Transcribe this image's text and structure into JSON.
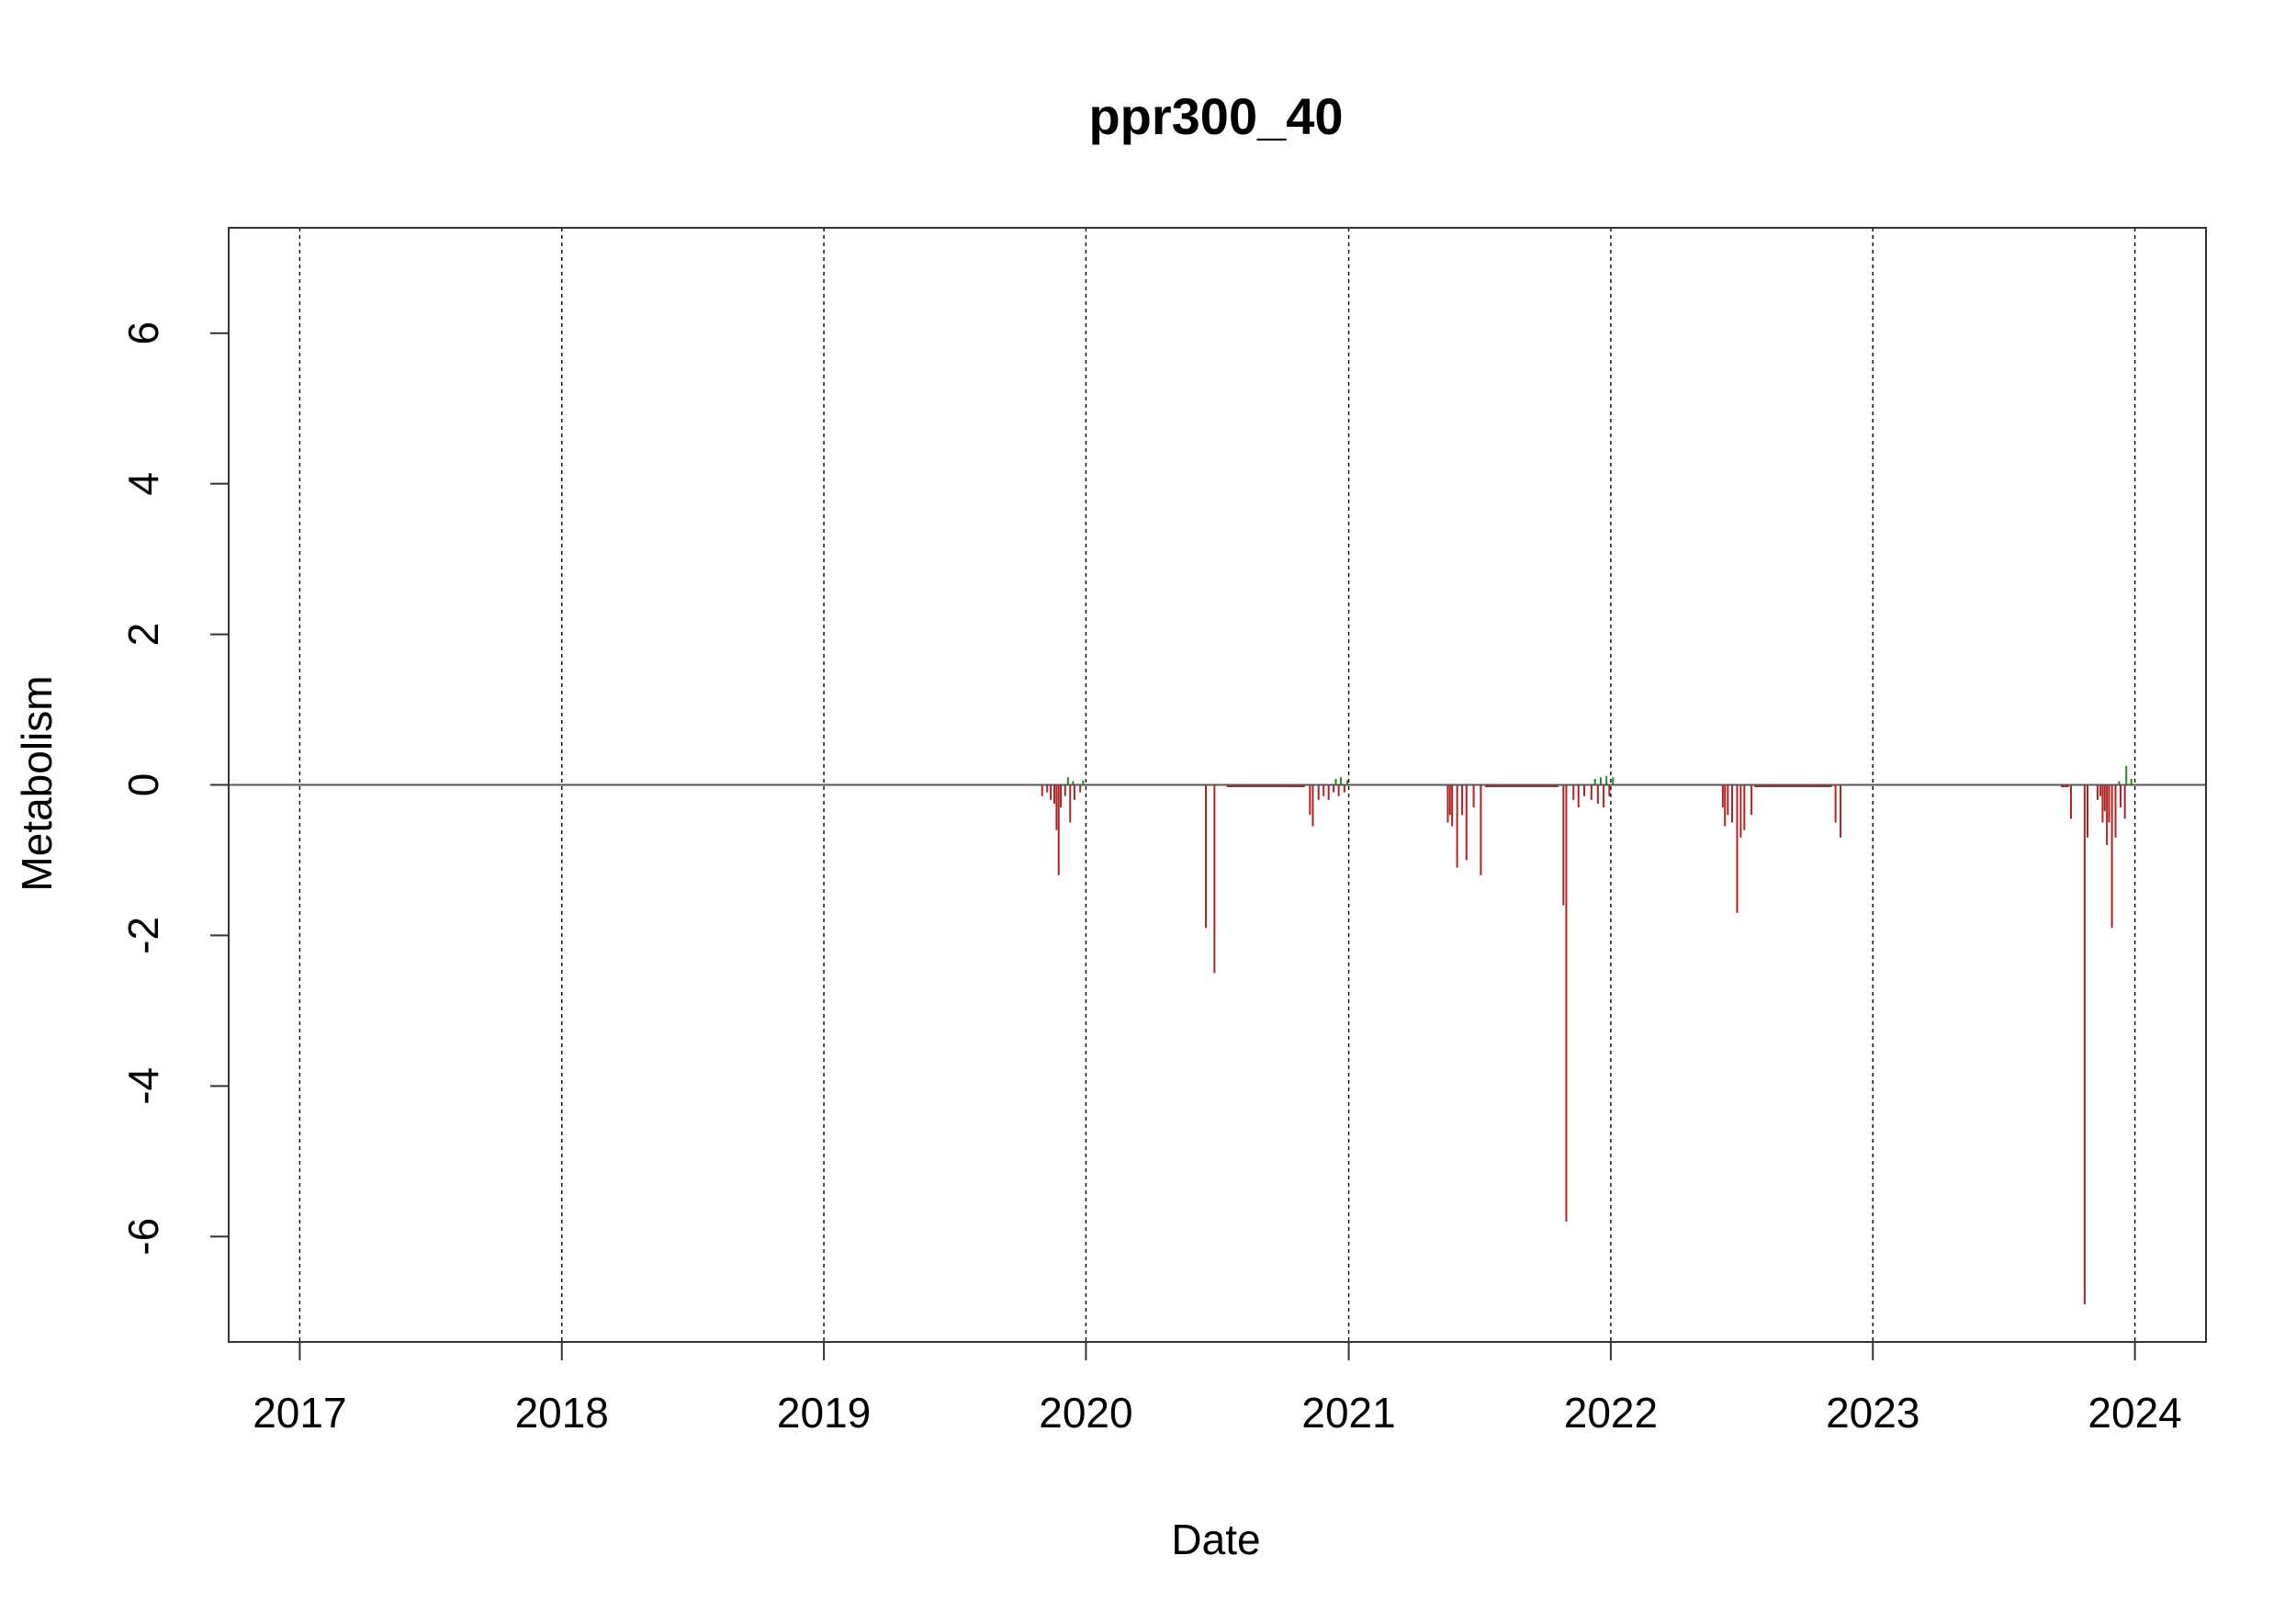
{
  "chart_data": {
    "type": "bar",
    "title": "ppr300_40",
    "xlabel": "Date",
    "ylabel": "Metabolism",
    "xlim": [
      "2016-09-24",
      "2024-04-09"
    ],
    "ylim": [
      -7.4,
      7.4
    ],
    "x_ticks": [
      "2017-01-01",
      "2018-01-01",
      "2019-01-01",
      "2020-01-01",
      "2021-01-01",
      "2022-01-01",
      "2023-01-01",
      "2024-01-01"
    ],
    "x_tick_labels": [
      "2017",
      "2018",
      "2019",
      "2020",
      "2021",
      "2022",
      "2023",
      "2024"
    ],
    "y_ticks": [
      -6,
      -4,
      -2,
      0,
      2,
      4,
      6
    ],
    "y_tick_labels": [
      "-6",
      "-4",
      "-2",
      "0",
      "2",
      "4",
      "6"
    ],
    "grid": "vertical-dashed",
    "colors": {
      "negative": "#b22222",
      "positive": "#228b22",
      "axis": "#000000",
      "grid": "#000000"
    },
    "series": [
      {
        "sign": "negative",
        "points": [
          [
            "2019-11-01",
            -0.15
          ],
          [
            "2019-11-08",
            -0.1
          ],
          [
            "2019-11-13",
            -0.2
          ],
          [
            "2019-11-18",
            -0.25
          ],
          [
            "2019-11-21",
            -0.6
          ],
          [
            "2019-11-24",
            -1.2
          ],
          [
            "2019-11-27",
            -0.3
          ],
          [
            "2019-12-03",
            -0.15
          ],
          [
            "2019-12-10",
            -0.5
          ],
          [
            "2019-12-16",
            -0.2
          ],
          [
            "2019-12-24",
            -0.1
          ],
          [
            "2020-06-16",
            -1.9
          ],
          [
            "2020-06-28",
            -2.5
          ],
          [
            "2020-11-08",
            -0.4
          ],
          [
            "2020-11-12",
            -0.55
          ],
          [
            "2020-11-20",
            -0.2
          ],
          [
            "2020-11-27",
            -0.15
          ],
          [
            "2020-12-04",
            -0.2
          ],
          [
            "2020-12-11",
            -0.1
          ],
          [
            "2020-12-18",
            -0.15
          ],
          [
            "2020-12-26",
            -0.1
          ],
          [
            "2021-05-19",
            -0.5
          ],
          [
            "2021-05-22",
            -0.4
          ],
          [
            "2021-05-25",
            -0.55
          ],
          [
            "2021-06-01",
            -1.1
          ],
          [
            "2021-06-08",
            -0.4
          ],
          [
            "2021-06-14",
            -1.0
          ],
          [
            "2021-06-24",
            -0.3
          ],
          [
            "2021-07-04",
            -1.2
          ],
          [
            "2021-10-27",
            -1.6
          ],
          [
            "2021-10-31",
            -5.8
          ],
          [
            "2021-11-10",
            -0.2
          ],
          [
            "2021-11-17",
            -0.3
          ],
          [
            "2021-11-25",
            -0.15
          ],
          [
            "2021-12-05",
            -0.2
          ],
          [
            "2021-12-14",
            -0.25
          ],
          [
            "2021-12-22",
            -0.3
          ],
          [
            "2021-12-30",
            -0.15
          ],
          [
            "2022-06-06",
            -0.3
          ],
          [
            "2022-06-09",
            -0.55
          ],
          [
            "2022-06-13",
            -0.4
          ],
          [
            "2022-06-19",
            -0.5
          ],
          [
            "2022-06-26",
            -1.7
          ],
          [
            "2022-07-01",
            -0.7
          ],
          [
            "2022-07-06",
            -0.6
          ],
          [
            "2022-07-16",
            -0.4
          ],
          [
            "2022-11-10",
            -0.5
          ],
          [
            "2022-11-17",
            -0.7
          ],
          [
            "2023-10-04",
            -0.45
          ],
          [
            "2023-10-23",
            -6.9
          ],
          [
            "2023-10-27",
            -0.7
          ],
          [
            "2023-11-10",
            -0.2
          ],
          [
            "2023-11-14",
            -0.15
          ],
          [
            "2023-11-17",
            -0.5
          ],
          [
            "2023-11-20",
            -0.35
          ],
          [
            "2023-11-23",
            -0.8
          ],
          [
            "2023-11-26",
            -0.5
          ],
          [
            "2023-11-30",
            -1.9
          ],
          [
            "2023-12-05",
            -0.7
          ],
          [
            "2023-12-12",
            -0.3
          ],
          [
            "2023-12-18",
            -0.45
          ]
        ]
      },
      {
        "sign": "positive",
        "points": [
          [
            "2019-12-07",
            0.1
          ],
          [
            "2019-12-14",
            0.05
          ],
          [
            "2019-12-28",
            0.06
          ],
          [
            "2020-12-14",
            0.08
          ],
          [
            "2020-12-21",
            0.1
          ],
          [
            "2020-12-30",
            0.06
          ],
          [
            "2021-12-10",
            0.08
          ],
          [
            "2021-12-18",
            0.1
          ],
          [
            "2021-12-26",
            0.12
          ],
          [
            "2022-01-04",
            0.1
          ],
          [
            "2023-12-10",
            0.05
          ],
          [
            "2023-12-20",
            0.25
          ],
          [
            "2023-12-27",
            0.08
          ]
        ]
      }
    ],
    "flat_near_zero_ranges": [
      [
        "2020-07-15",
        "2020-11-01"
      ],
      [
        "2021-07-10",
        "2021-10-20"
      ],
      [
        "2022-07-20",
        "2022-11-05"
      ],
      [
        "2023-09-20",
        "2023-10-01"
      ]
    ]
  }
}
